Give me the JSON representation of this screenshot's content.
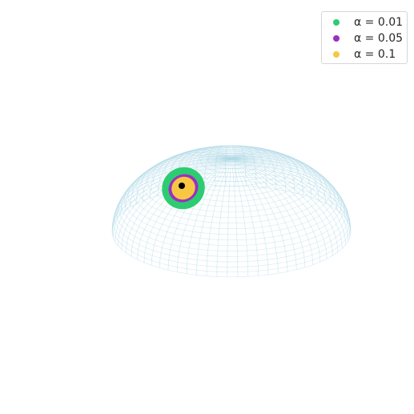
{
  "chart_data": {
    "type": "scatter",
    "title": "",
    "xlabel": "",
    "ylabel": "",
    "grid": false,
    "legend_position": "top-right",
    "surface": {
      "kind": "wireframe-sphere",
      "color": "#add8e6"
    },
    "series": [
      {
        "name": "α = 0.01",
        "color": "#2ecc71"
      },
      {
        "name": "α = 0.05",
        "color": "#9b30c0"
      },
      {
        "name": "α = 0.1",
        "color": "#f7c744"
      }
    ],
    "center_point": {
      "color": "#000000"
    }
  }
}
